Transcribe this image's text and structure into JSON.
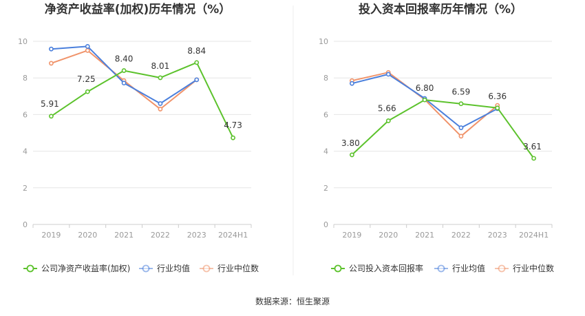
{
  "source": "数据来源：恒生聚源",
  "colors": {
    "company": "#5cc22c",
    "industry_avg": "#4a7fdc",
    "industry_median": "#f0936a",
    "grid": "#e6e6e6",
    "axis": "#cccccc",
    "divider": "#eeeeee"
  },
  "chart_data": [
    {
      "type": "line",
      "title": "净资产收益率(加权)历年情况（%）",
      "categories": [
        "2019",
        "2020",
        "2021",
        "2022",
        "2023",
        "2024H1"
      ],
      "ylim": [
        0,
        10
      ],
      "yticks": [
        "0",
        "2",
        "4",
        "6",
        "8",
        "10"
      ],
      "grid": true,
      "legend_position": "bottom",
      "series": [
        {
          "name": "公司净资产收益率(加权)",
          "key": "company",
          "values": [
            5.91,
            7.25,
            8.4,
            8.01,
            8.84,
            4.73
          ],
          "labels": [
            "5.91",
            "7.25",
            "8.40",
            "8.01",
            "8.84",
            "4.73"
          ]
        },
        {
          "name": "行业均值",
          "key": "industry_avg",
          "values": [
            9.58,
            9.72,
            7.72,
            6.6,
            7.9,
            null
          ]
        },
        {
          "name": "行业中位数",
          "key": "industry_median",
          "values": [
            8.8,
            9.5,
            7.85,
            6.3,
            7.9,
            null
          ]
        }
      ]
    },
    {
      "type": "line",
      "title": "投入资本回报率历年情况（%）",
      "categories": [
        "2019",
        "2020",
        "2021",
        "2022",
        "2023",
        "2024H1"
      ],
      "ylim": [
        0,
        10
      ],
      "yticks": [
        "0",
        "2",
        "4",
        "6",
        "8",
        "10"
      ],
      "grid": true,
      "legend_position": "bottom",
      "series": [
        {
          "name": "公司投入资本回报率",
          "key": "company",
          "values": [
            3.8,
            5.66,
            6.8,
            6.59,
            6.36,
            3.61
          ],
          "labels": [
            "3.80",
            "5.66",
            "6.80",
            "6.59",
            "6.36",
            "3.61"
          ]
        },
        {
          "name": "行业均值",
          "key": "industry_avg",
          "values": [
            7.7,
            8.2,
            6.88,
            5.28,
            6.32,
            null
          ]
        },
        {
          "name": "行业中位数",
          "key": "industry_median",
          "values": [
            7.85,
            8.3,
            6.82,
            4.82,
            6.5,
            null
          ]
        }
      ]
    }
  ]
}
